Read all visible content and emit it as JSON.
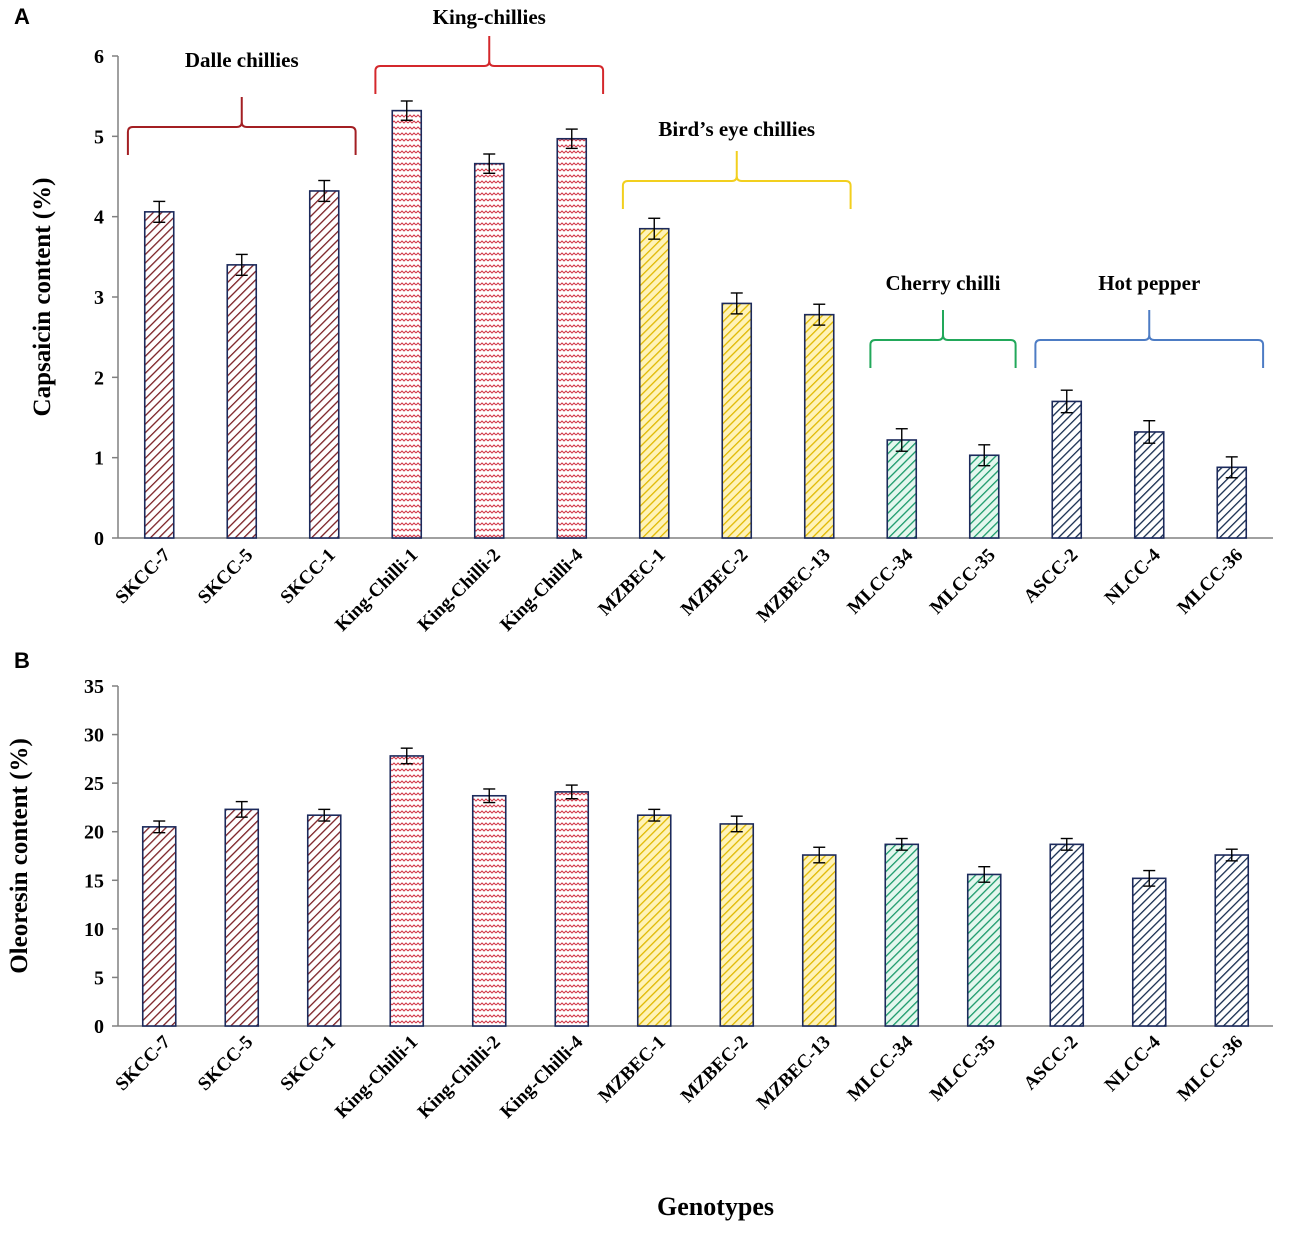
{
  "chart_data": [
    {
      "type": "bar",
      "panel_label": "A",
      "title": "",
      "xlabel": "",
      "ylabel": "Capsaicin content (%)",
      "ylim": [
        0,
        6
      ],
      "yticks": [
        0,
        1,
        2,
        3,
        4,
        5,
        6
      ],
      "grid": false,
      "categories": [
        "SKCC-7",
        "SKCC-5",
        "SKCC-1",
        "King-Chilli-1",
        "King-Chilli-2",
        "King-Chilli-4",
        "MZBEC-1",
        "MZBEC-2",
        "MZBEC-13",
        "MLCC-34",
        "MLCC-35",
        "ASCC-2",
        "NLCC-4",
        "MLCC-36"
      ],
      "values": [
        4.06,
        3.4,
        4.32,
        5.32,
        4.66,
        4.97,
        3.85,
        2.92,
        2.78,
        1.22,
        1.03,
        1.7,
        1.32,
        0.88
      ],
      "errors": [
        0.13,
        0.13,
        0.13,
        0.12,
        0.12,
        0.12,
        0.13,
        0.13,
        0.13,
        0.14,
        0.13,
        0.14,
        0.14,
        0.13
      ],
      "groups": [
        {
          "name": "Dalle chillies",
          "start": 0,
          "end": 2,
          "color": "#a31f23"
        },
        {
          "name": "King-chillies",
          "start": 3,
          "end": 5,
          "color": "#d4282c"
        },
        {
          "name": "Bird’s eye chillies",
          "start": 6,
          "end": 8,
          "color": "#f2cf1e"
        },
        {
          "name": "Cherry chilli",
          "start": 9,
          "end": 10,
          "color": "#22a85a"
        },
        {
          "name": "Hot pepper",
          "start": 11,
          "end": 13,
          "color": "#4d7cc4"
        }
      ]
    },
    {
      "type": "bar",
      "panel_label": "B",
      "title": "",
      "xlabel": "Genotypes",
      "ylabel": "Oleoresin content (%)",
      "ylim": [
        0,
        35
      ],
      "yticks": [
        0,
        5,
        10,
        15,
        20,
        25,
        30,
        35
      ],
      "grid": false,
      "categories": [
        "SKCC-7",
        "SKCC-5",
        "SKCC-1",
        "King-Chilli-1",
        "King-Chilli-2",
        "King-Chilli-4",
        "MZBEC-1",
        "MZBEC-2",
        "MZBEC-13",
        "MLCC-34",
        "MLCC-35",
        "ASCC-2",
        "NLCC-4",
        "MLCC-36"
      ],
      "values": [
        20.5,
        22.3,
        21.7,
        27.8,
        23.7,
        24.1,
        21.7,
        20.8,
        17.6,
        18.7,
        15.6,
        18.7,
        15.2,
        17.6
      ],
      "errors": [
        0.6,
        0.8,
        0.6,
        0.8,
        0.7,
        0.7,
        0.6,
        0.8,
        0.8,
        0.6,
        0.8,
        0.6,
        0.8,
        0.6
      ]
    }
  ],
  "styles": {
    "bar_colors": [
      "#7a1f24",
      "#7a1f24",
      "#7a1f24",
      "#d23a4a",
      "#d23a4a",
      "#d23a4a",
      "#e0b800",
      "#e0b800",
      "#e0b800",
      "#1a9a6a",
      "#1a9a6a",
      "#152b4e",
      "#152b4e",
      "#152b4e"
    ],
    "bar_backgrounds": [
      "#ffffff",
      "#ffffff",
      "#ffffff",
      "#ffffff",
      "#ffffff",
      "#ffffff",
      "#fff3b8",
      "#fff3b8",
      "#fff3b8",
      "#e4f7ee",
      "#e4f7ee",
      "#ffffff",
      "#ffffff",
      "#ffffff"
    ],
    "bar_patterns": [
      "diag",
      "diag",
      "diag",
      "wave",
      "wave",
      "wave",
      "diag",
      "diag",
      "diag",
      "diag",
      "diag",
      "diag",
      "diag",
      "diag"
    ],
    "bar_outline": "#1c2a5c",
    "axis_color": "#808080"
  }
}
